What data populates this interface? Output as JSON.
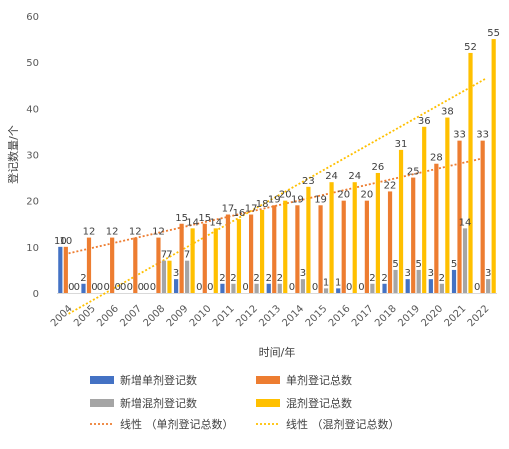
{
  "chart_data": {
    "type": "bar",
    "title": "",
    "xlabel": "时间/年",
    "ylabel": "登记数量/个",
    "ylim": [
      0,
      60
    ],
    "yticks": [
      0,
      10,
      20,
      30,
      40,
      50,
      60
    ],
    "grid": false,
    "legend_position": "bottom",
    "categories": [
      "2004",
      "2005",
      "2006",
      "2007",
      "2008",
      "2009",
      "2010",
      "2011",
      "2012",
      "2013",
      "2014",
      "2015",
      "2016",
      "2017",
      "2018",
      "2019",
      "2020",
      "2021",
      "2022"
    ],
    "series": [
      {
        "name": "新增单剂登记数",
        "color": "#4472C4",
        "values": [
          10,
          2,
          0,
          0,
          0,
          3,
          0,
          2,
          0,
          2,
          0,
          0,
          1,
          0,
          2,
          3,
          3,
          5,
          0
        ]
      },
      {
        "name": "单剂登记总数",
        "color": "#ED7D31",
        "values": [
          10,
          12,
          12,
          12,
          12,
          15,
          15,
          17,
          17,
          19,
          19,
          19,
          20,
          20,
          22,
          25,
          28,
          33,
          33
        ]
      },
      {
        "name": "新增混剂登记数",
        "color": "#A5A5A5",
        "values": [
          0,
          0,
          0,
          0,
          7,
          7,
          0,
          2,
          2,
          2,
          3,
          1,
          0,
          2,
          5,
          5,
          2,
          14,
          3
        ]
      },
      {
        "name": "混剂登记总数",
        "color": "#FFC000",
        "values": [
          0,
          0,
          0,
          0,
          7,
          14,
          14,
          16,
          18,
          20,
          23,
          24,
          24,
          26,
          31,
          36,
          38,
          52,
          55
        ]
      }
    ],
    "trendlines": [
      {
        "name": "线性 （单剂登记总数）",
        "color": "#ED7D31",
        "style": "dotted"
      },
      {
        "name": "线性 （混剂登记总数）",
        "color": "#FFC000",
        "style": "dotted"
      }
    ]
  }
}
